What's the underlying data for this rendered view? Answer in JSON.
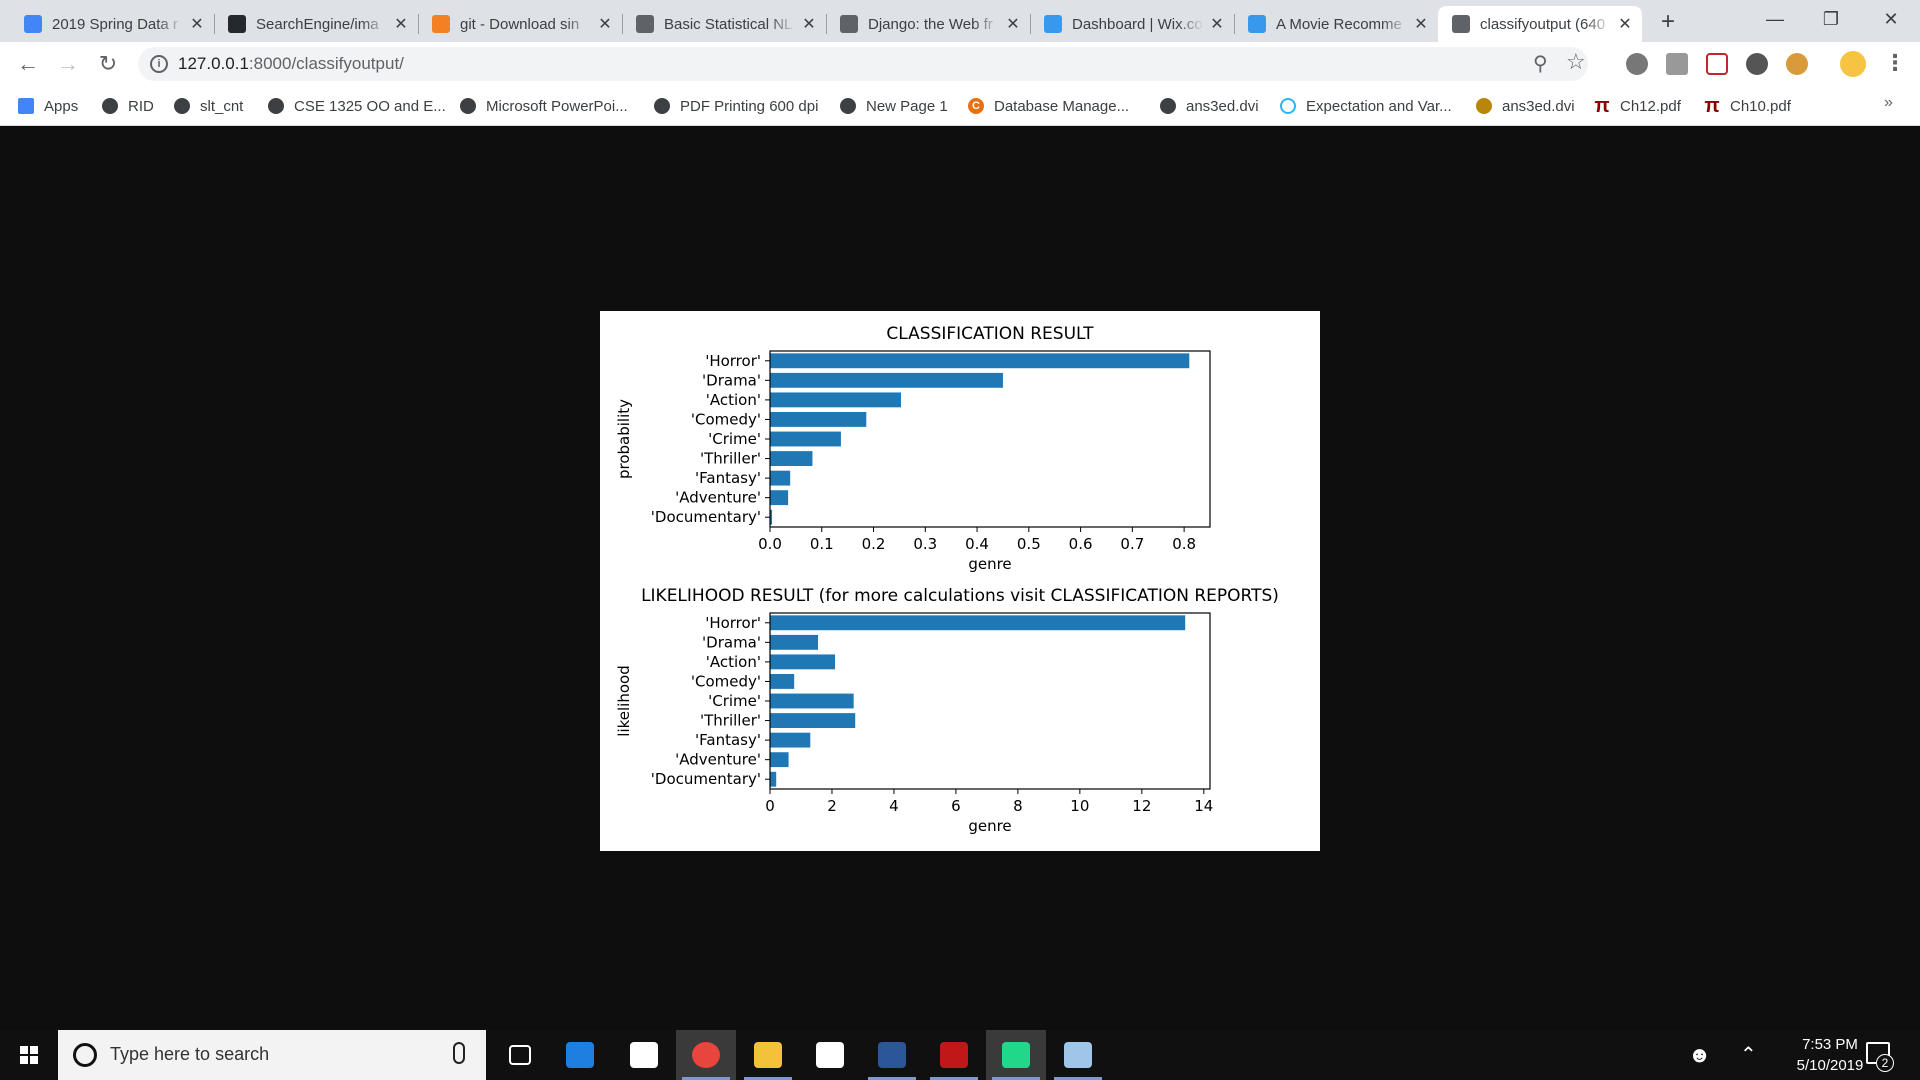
{
  "browser": {
    "tabs": [
      {
        "label": "2019 Spring Data r",
        "icon": "docs-icon",
        "color": "#4285f4"
      },
      {
        "label": "SearchEngine/ima",
        "icon": "github-icon",
        "color": "#24292e"
      },
      {
        "label": "git - Download sin",
        "icon": "stackoverflow-icon",
        "color": "#f48024"
      },
      {
        "label": "Basic Statistical NL",
        "icon": "globe-icon",
        "color": "#5f6368"
      },
      {
        "label": "Django: the Web fr",
        "icon": "globe-icon",
        "color": "#5f6368"
      },
      {
        "label": "Dashboard | Wix.co",
        "icon": "wix-icon",
        "color": "#3899ec"
      },
      {
        "label": "A Movie Recomme",
        "icon": "wix-icon",
        "color": "#3899ec"
      },
      {
        "label": "classifyoutput (640",
        "icon": "globe-icon",
        "color": "#5f6368",
        "active": true
      }
    ],
    "url_host": "127.0.0.1",
    "url_rest": ":8000/classifyoutput/",
    "bookmarks": [
      {
        "label": "Apps",
        "icon": "apps-icon"
      },
      {
        "label": "RID",
        "icon": "globe-icon"
      },
      {
        "label": "slt_cnt",
        "icon": "globe-icon"
      },
      {
        "label": "CSE 1325 OO and E...",
        "icon": "globe-icon"
      },
      {
        "label": "Microsoft PowerPoi...",
        "icon": "globe-icon"
      },
      {
        "label": "PDF Printing 600 dpi",
        "icon": "globe-icon"
      },
      {
        "label": "New Page 1",
        "icon": "globe-icon"
      },
      {
        "label": "Database Manage...",
        "icon": "c-logo-icon"
      },
      {
        "label": "ans3ed.dvi",
        "icon": "globe-icon"
      },
      {
        "label": "Expectation and Var...",
        "icon": "loading-icon"
      },
      {
        "label": "ans3ed.dvi",
        "icon": "shield-crest-icon"
      },
      {
        "label": "Ch12.pdf",
        "icon": "pi-icon"
      },
      {
        "label": "Ch10.pdf",
        "icon": "pi-icon"
      }
    ],
    "bookmarks_overflow": "»"
  },
  "chart_data": [
    {
      "type": "bar",
      "orientation": "horizontal",
      "title": "CLASSIFICATION RESULT",
      "xlabel": "genre",
      "ylabel": "probability",
      "categories": [
        "'Horror'",
        "'Drama'",
        "'Action'",
        "'Comedy'",
        "'Crime'",
        "'Thriller'",
        "'Fantasy'",
        "'Adventure'",
        "'Documentary'"
      ],
      "values": [
        0.81,
        0.45,
        0.253,
        0.186,
        0.137,
        0.082,
        0.039,
        0.035,
        0.004
      ],
      "xlim": [
        0,
        0.85
      ],
      "xticks": [
        "0.0",
        "0.1",
        "0.2",
        "0.3",
        "0.4",
        "0.5",
        "0.6",
        "0.7",
        "0.8"
      ],
      "color": "#1f77b4"
    },
    {
      "type": "bar",
      "orientation": "horizontal",
      "title": "LIKELIHOOD RESULT (for more calculations visit CLASSIFICATION REPORTS)",
      "xlabel": "genre",
      "ylabel": "likelihood",
      "categories": [
        "'Horror'",
        "'Drama'",
        "'Action'",
        "'Comedy'",
        "'Crime'",
        "'Thriller'",
        "'Fantasy'",
        "'Adventure'",
        "'Documentary'"
      ],
      "values": [
        13.4,
        1.55,
        2.1,
        0.78,
        2.7,
        2.75,
        1.3,
        0.6,
        0.2
      ],
      "xlim": [
        0,
        14.2
      ],
      "xticks": [
        "0",
        "2",
        "4",
        "6",
        "8",
        "10",
        "12",
        "14"
      ],
      "color": "#1f77b4"
    }
  ],
  "taskbar": {
    "search_placeholder": "Type here to search",
    "apps": [
      {
        "name": "task-view-icon",
        "color": "#ffffff"
      },
      {
        "name": "edge-icon",
        "color": "#1f7fe0"
      },
      {
        "name": "mail-icon",
        "color": "#ffffff"
      },
      {
        "name": "chrome-icon",
        "color": "#e8453c",
        "running": true,
        "active": true
      },
      {
        "name": "file-explorer-icon",
        "color": "#f3c13a",
        "running": true
      },
      {
        "name": "store-icon",
        "color": "#ffffff"
      },
      {
        "name": "word-icon",
        "color": "#2b579a",
        "running": true
      },
      {
        "name": "mcafee-icon",
        "color": "#c01818",
        "running": true
      },
      {
        "name": "pycharm-icon",
        "color": "#21d789",
        "running": true,
        "active": true
      },
      {
        "name": "paint-icon",
        "color": "#9fc5e8",
        "running": true
      }
    ],
    "time": "7:53 PM",
    "date": "5/10/2019",
    "notifications": "2"
  }
}
